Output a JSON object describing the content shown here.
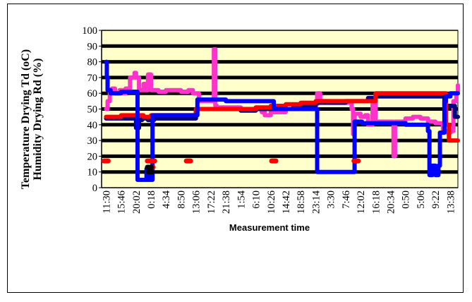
{
  "chart_data": {
    "type": "line",
    "title": "",
    "ylabel_lines": [
      "Temperature Drying Td (oC)",
      "Humidity Drying Rd (%)"
    ],
    "xlabel": "Measurement time",
    "ylim": [
      0,
      100
    ],
    "yticks": [
      0,
      10,
      20,
      30,
      40,
      50,
      60,
      70,
      80,
      90,
      100
    ],
    "grid": true,
    "legend": "none",
    "plot_background": "#ffffcc",
    "categories": [
      "11:30",
      "15:46",
      "20:02",
      "0:18",
      "4:34",
      "8:50",
      "13:06",
      "17:22",
      "21:38",
      "1:54",
      "6:10",
      "10:26",
      "14:42",
      "18:58",
      "23:14",
      "3:30",
      "7:46",
      "12:02",
      "16:18",
      "20:34",
      "0:50",
      "5:06",
      "9:22",
      "13:38"
    ],
    "series": [
      {
        "color": "#ff33cc",
        "x": [
          0,
          0.1,
          0.25,
          0.4,
          0.6,
          0.9,
          1.1,
          1.3,
          1.6,
          1.9,
          2.0,
          2.2,
          2.5,
          2.6,
          2.8,
          3.0,
          3.1,
          3.3,
          3.5,
          4,
          5,
          5.5,
          5.8,
          6.2,
          7,
          7.2,
          7.25,
          7.3,
          7.4,
          8,
          9,
          10,
          10.4,
          10.6,
          11,
          12,
          13,
          14,
          14.1,
          14.3,
          15,
          16,
          16.4,
          16.5,
          16.6,
          17,
          17.3,
          17.5,
          17.8,
          18,
          18.5,
          19,
          19.2,
          19.3,
          19.5,
          20,
          20.5,
          21,
          21.5,
          22,
          22.5,
          22.8,
          23,
          23.2,
          23.4,
          23.5
        ],
        "values": [
          50,
          55,
          62,
          63,
          60,
          62,
          60,
          63,
          70,
          73,
          70,
          62,
          66,
          62,
          72,
          62,
          62,
          62,
          61,
          62,
          61,
          62,
          60,
          55,
          55,
          88,
          88,
          52,
          51,
          51,
          50,
          50,
          48,
          46,
          48,
          50,
          51,
          53,
          60,
          55,
          54,
          54,
          50,
          34,
          47,
          45,
          46,
          40,
          55,
          42,
          42,
          42,
          20,
          42,
          42,
          44,
          45,
          44,
          42,
          41,
          36,
          35,
          36,
          55,
          60,
          65
        ]
      },
      {
        "color": "#000080",
        "x": [
          0,
          0.1,
          0.2,
          0.5,
          1,
          1.5,
          1.8,
          2.0,
          2.2,
          2.4,
          2.6,
          2.8,
          3.0,
          3.2,
          3.6,
          5,
          6,
          7,
          8,
          9,
          10,
          10.5,
          11,
          12,
          12.5,
          13,
          14,
          15,
          16,
          16.5,
          17,
          17.5,
          18,
          20,
          21,
          21.5,
          22,
          22.5,
          22.6,
          23,
          23.3,
          23.5
        ],
        "values": [
          44,
          44,
          44,
          44,
          44,
          44,
          44,
          38,
          43,
          44,
          44,
          43,
          43,
          44,
          44,
          44,
          50,
          50,
          50,
          49,
          50,
          50,
          50,
          50,
          51,
          52,
          54,
          54,
          55,
          55,
          55,
          57,
          58,
          58,
          58,
          58,
          58,
          58,
          52,
          52,
          45,
          45
        ]
      },
      {
        "color": "#ff0000",
        "x": [
          0,
          0.2,
          0.5,
          1,
          1.5,
          2,
          2.5,
          3,
          3.5,
          4,
          5,
          5.5,
          6,
          6.5,
          7,
          8,
          9,
          10,
          11,
          12,
          13,
          14,
          15,
          16,
          16.5,
          17,
          17.5,
          18,
          19,
          20,
          21,
          22,
          22.5,
          22.7,
          22.9,
          23,
          23.2,
          23.5
        ],
        "values": [
          45,
          45,
          45,
          46,
          46,
          46,
          45,
          46,
          46,
          46,
          46,
          46,
          50,
          50,
          50,
          50,
          50,
          51,
          52,
          53,
          54,
          55,
          55,
          55,
          55,
          55,
          55,
          60,
          60,
          60,
          60,
          60,
          60,
          40,
          30,
          30,
          30,
          30
        ]
      },
      {
        "color": "#0000ff",
        "x": [
          0,
          0.05,
          0.1,
          0.3,
          1,
          2,
          2.1,
          2.2,
          2.6,
          2.7,
          2.8,
          2.9,
          3.0,
          3.1,
          3.3,
          4,
          5,
          6,
          6.1,
          7,
          8,
          9,
          10,
          11,
          11.2,
          12,
          13,
          14,
          14.1,
          14.5,
          15,
          15.5,
          16,
          16.5,
          16.6,
          17,
          17.1,
          17.5,
          18,
          19,
          20,
          21,
          21.5,
          21.6,
          21.8,
          22,
          22.2,
          22.3,
          22.4,
          22.5,
          22.6,
          22.7,
          23,
          23.5
        ],
        "values": [
          80,
          70,
          62,
          60,
          61,
          61,
          5,
          5,
          5,
          12,
          5,
          13,
          5,
          46,
          46,
          46,
          46,
          46,
          56,
          56,
          55,
          55,
          55,
          55,
          50,
          50,
          50,
          50,
          10,
          10,
          10,
          10,
          10,
          10,
          42,
          42,
          41,
          41,
          41,
          41,
          40,
          40,
          36,
          8,
          14,
          8,
          14,
          35,
          35,
          35,
          55,
          58,
          60,
          60
        ]
      },
      {
        "color": "#ff0000",
        "marks": "short-segments",
        "points": [
          [
            0,
            17
          ],
          [
            2.9,
            17
          ],
          [
            3.1,
            17
          ],
          [
            5.5,
            17
          ],
          [
            11.2,
            17
          ],
          [
            16.7,
            17
          ],
          [
            3.0,
            13
          ]
        ]
      },
      {
        "color": "#000000",
        "marks": "short-segments",
        "points": [
          [
            2.9,
            13
          ],
          [
            2.95,
            10
          ]
        ]
      }
    ]
  }
}
